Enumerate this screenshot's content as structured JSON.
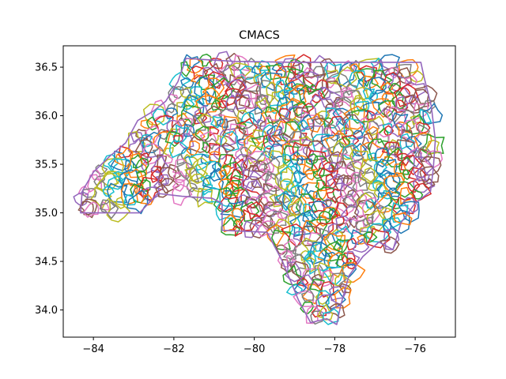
{
  "chart_data": {
    "type": "map",
    "title": "CMACS",
    "xlabel": "",
    "ylabel": "",
    "xlim": [
      -84.75,
      -75.0
    ],
    "ylim": [
      33.72,
      36.72
    ],
    "xticks": [
      -84,
      -82,
      -80,
      -78,
      -76
    ],
    "xtick_labels": [
      "−84",
      "−82",
      "−80",
      "−78",
      "−76"
    ],
    "yticks": [
      34.0,
      34.5,
      35.0,
      35.5,
      36.0,
      36.5
    ],
    "ytick_labels": [
      "34.0",
      "34.5",
      "35.0",
      "35.5",
      "36.0",
      "36.5"
    ],
    "grid": false,
    "legend": "none",
    "palette": [
      "#1f77b4",
      "#ff7f0e",
      "#2ca02c",
      "#d62728",
      "#9467bd",
      "#8c564b",
      "#e377c2",
      "#7f7f7f",
      "#bcbd22",
      "#17becf"
    ],
    "boundary": [
      [
        -84.32,
        35.0
      ],
      [
        -84.28,
        35.22
      ],
      [
        -84.0,
        35.42
      ],
      [
        -83.6,
        35.58
      ],
      [
        -83.2,
        35.72
      ],
      [
        -82.9,
        35.95
      ],
      [
        -82.5,
        36.05
      ],
      [
        -82.2,
        36.15
      ],
      [
        -81.9,
        36.35
      ],
      [
        -81.7,
        36.59
      ],
      [
        -80.5,
        36.56
      ],
      [
        -79.0,
        36.55
      ],
      [
        -77.0,
        36.55
      ],
      [
        -75.86,
        36.55
      ],
      [
        -75.78,
        36.4
      ],
      [
        -75.6,
        36.1
      ],
      [
        -75.5,
        35.75
      ],
      [
        -75.55,
        35.45
      ],
      [
        -75.62,
        35.22
      ],
      [
        -76.0,
        35.1
      ],
      [
        -76.35,
        34.9
      ],
      [
        -76.55,
        34.62
      ],
      [
        -76.9,
        34.7
      ],
      [
        -77.3,
        34.55
      ],
      [
        -77.65,
        34.35
      ],
      [
        -77.85,
        34.05
      ],
      [
        -77.95,
        33.85
      ],
      [
        -78.2,
        33.91
      ],
      [
        -78.6,
        33.87
      ],
      [
        -78.9,
        34.1
      ],
      [
        -79.3,
        34.5
      ],
      [
        -79.68,
        34.8
      ],
      [
        -80.8,
        34.82
      ],
      [
        -80.8,
        35.1
      ],
      [
        -81.05,
        35.15
      ],
      [
        -81.8,
        35.17
      ],
      [
        -82.4,
        35.2
      ],
      [
        -82.85,
        35.0
      ],
      [
        -83.1,
        35.0
      ],
      [
        -84.32,
        35.0
      ]
    ]
  }
}
